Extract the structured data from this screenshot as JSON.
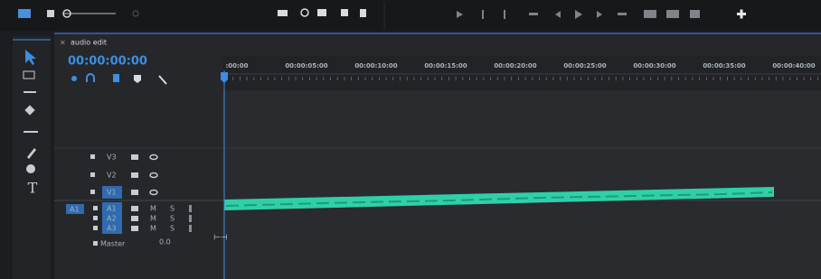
{
  "panel": {
    "tab": "audio edit",
    "timecode": "00:00:00:00"
  },
  "ruler": {
    "labels": [
      ":00:00",
      "00:00:05:00",
      "00:00:10:00",
      "00:00:15:00",
      "00:00:20:00",
      "00:00:25:00",
      "00:00:30:00",
      "00:00:35:00",
      "00:00:40:00"
    ]
  },
  "tracks": {
    "video": [
      "V3",
      "V2",
      "V1"
    ],
    "source": "A1",
    "audio": [
      {
        "name": "A1",
        "mute": "M",
        "solo": "S"
      },
      {
        "name": "A2",
        "mute": "M",
        "solo": "S"
      },
      {
        "name": "A3",
        "mute": "M",
        "solo": "S"
      }
    ],
    "master": {
      "name": "Master",
      "value": "0.0"
    }
  }
}
